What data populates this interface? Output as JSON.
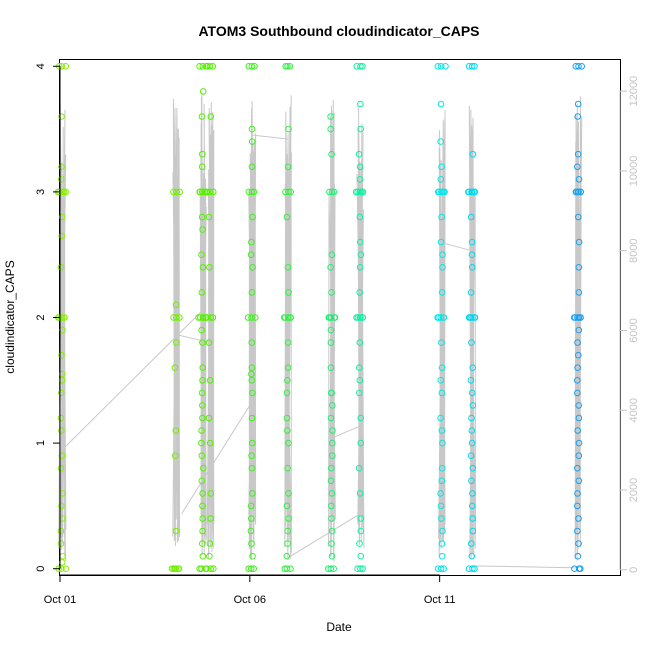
{
  "chart_data": {
    "type": "scatter",
    "title": "ATOM3 Southbound cloudindicator_CAPS",
    "xlabel": "Date",
    "ylabel": "cloudindicator_CAPS",
    "x_range_days": [
      0.0,
      14.75
    ],
    "ylim": [
      -0.05,
      4.05
    ],
    "ylim_right": [
      -130,
      12780
    ],
    "x_ticks": [
      {
        "label": "Oct 01",
        "day": 0
      },
      {
        "label": "Oct 06",
        "day": 5
      },
      {
        "label": "Oct 11",
        "day": 10
      }
    ],
    "y_ticks": [
      0,
      1,
      2,
      3,
      4
    ],
    "y_ticks_right": [
      0,
      2000,
      4000,
      6000,
      8000,
      10000,
      12000
    ],
    "color_gradient": [
      "#7fff00",
      "#00e5ff",
      "#1e90ff"
    ],
    "clusters": [
      {
        "day": 0.05,
        "color": "#87f000",
        "values": [
          4,
          3.6,
          3.2,
          3.1,
          3,
          3,
          2.8,
          2.65,
          2.4,
          2.4,
          2,
          2,
          1.9,
          1.7,
          1.55,
          1.5,
          1.4,
          1.2,
          1.1,
          0.9,
          0.8,
          0.6,
          0.5,
          0.4,
          0.3,
          0.2,
          0.1,
          0.05,
          0
        ]
      },
      {
        "day": 3.05,
        "color": "#6ff000",
        "values": [
          3,
          2.1,
          2,
          1.8,
          1.6,
          1.1,
          0.9,
          0.3,
          0,
          0
        ]
      },
      {
        "day": 3.75,
        "color": "#55f000",
        "values": [
          4,
          3.8,
          3.6,
          3.3,
          3.2,
          3,
          3,
          2.8,
          2.7,
          2.5,
          2.4,
          2.2,
          2,
          2,
          1.9,
          1.8,
          1.6,
          1.5,
          1.4,
          1.3,
          1.2,
          1.1,
          1,
          0.9,
          0.8,
          0.7,
          0.6,
          0.5,
          0.4,
          0.3,
          0.2,
          0.1,
          0
        ]
      },
      {
        "day": 3.95,
        "color": "#55f000",
        "values": [
          4,
          3.6,
          3,
          2.8,
          2.4,
          2,
          1.8,
          1.5,
          1.2,
          1,
          0.6,
          0.4,
          0.2,
          0.1,
          0
        ]
      },
      {
        "day": 5.05,
        "color": "#40f020",
        "values": [
          4,
          3.5,
          3.4,
          3.2,
          3,
          2.8,
          2.6,
          2.5,
          2.4,
          2.2,
          2,
          1.8,
          1.6,
          1.55,
          1.5,
          1.4,
          1.2,
          1,
          0.9,
          0.8,
          0.6,
          0.5,
          0.4,
          0.3,
          0.2,
          0.1,
          0
        ]
      },
      {
        "day": 6.0,
        "color": "#33f040",
        "values": [
          4,
          3.5,
          3.2,
          3,
          2.8,
          2.4,
          2.2,
          2,
          2,
          1.8,
          1.6,
          1.5,
          1.4,
          1.2,
          1.1,
          1,
          0.8,
          0.6,
          0.5,
          0.4,
          0.3,
          0.2,
          0.1,
          0
        ]
      },
      {
        "day": 7.15,
        "color": "#20f070",
        "values": [
          3.6,
          3.5,
          3.3,
          3,
          2.5,
          2.4,
          2.2,
          2,
          2,
          1.9,
          1.8,
          1.6,
          1.4,
          1.4,
          1.3,
          1.2,
          1.1,
          1,
          0.9,
          0.8,
          0.7,
          0.6,
          0.5,
          0.4,
          0.3,
          0.2,
          0.1,
          0
        ]
      },
      {
        "day": 7.9,
        "color": "#10f0a0",
        "values": [
          4,
          3.7,
          3.5,
          3.3,
          3.2,
          3.1,
          3,
          3,
          2.8,
          2.6,
          2.5,
          2.4,
          2.2,
          2,
          2,
          1.8,
          1.6,
          1.5,
          1.4,
          1.2,
          1,
          0.8,
          0.6,
          0.4,
          0.3,
          0.2,
          0.1,
          0
        ]
      },
      {
        "day": 10.05,
        "color": "#00e8e8",
        "values": [
          4,
          3.7,
          3.4,
          3.2,
          3.1,
          3,
          3,
          2.8,
          2.6,
          2.5,
          2.4,
          2.2,
          2,
          2,
          1.8,
          1.6,
          1.5,
          1.4,
          1.2,
          1.1,
          1,
          0.8,
          0.7,
          0.6,
          0.5,
          0.4,
          0.3,
          0.2,
          0.1,
          0
        ]
      },
      {
        "day": 10.85,
        "color": "#00d8f0",
        "values": [
          4,
          3.3,
          3,
          3,
          2.8,
          2.6,
          2.5,
          2.4,
          2.2,
          2,
          2,
          1.8,
          1.6,
          1.5,
          1.4,
          1.3,
          1.2,
          1.1,
          1,
          0.9,
          0.8,
          0.7,
          0.6,
          0.5,
          0.4,
          0.3,
          0.2,
          0.1,
          0
        ]
      },
      {
        "day": 13.65,
        "color": "#1aa0f0",
        "values": [
          4,
          3.7,
          3.6,
          3.3,
          3.2,
          3.1,
          3,
          3,
          2.8,
          2.6,
          2.4,
          2.2,
          2,
          2,
          1.9,
          1.8,
          1.7,
          1.6,
          1.5,
          1.4,
          1.3,
          1.2,
          1.1,
          1,
          0.9,
          0.8,
          0.7,
          0.6,
          0.5,
          0.4,
          0.3,
          0.2,
          0.1,
          0
        ]
      }
    ]
  }
}
